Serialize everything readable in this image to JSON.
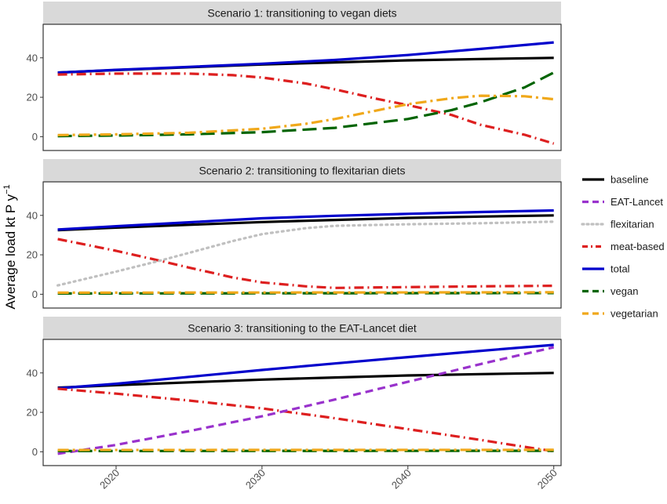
{
  "chart_data": {
    "type": "line",
    "ylabel": "Average load kt P y",
    "ylabel_superscript": "−1",
    "x_ticks": [
      2020,
      2030,
      2040,
      2050
    ],
    "xlim": [
      2015,
      2050.5
    ],
    "y_ticks": [
      0,
      20,
      40
    ],
    "legend_position": "right",
    "colors": {
      "baseline": "#000000",
      "EAT-Lancet": "#9932CC",
      "flexitarian": "#C0C0C0",
      "meat-based": "#DD1F1F",
      "total": "#0000CC",
      "vegan": "#006400",
      "vegetarian": "#F0A81A"
    },
    "legend": [
      "baseline",
      "EAT-Lancet",
      "flexitarian",
      "meat-based",
      "total",
      "vegan",
      "vegetarian"
    ],
    "panels": [
      {
        "title": "Scenario 1: transitioning to vegan diets",
        "ylim": [
          -7,
          57
        ],
        "series": [
          {
            "name": "baseline",
            "x": [
              2016,
              2020,
              2025,
              2030,
              2035,
              2040,
              2045,
              2050
            ],
            "y": [
              32.5,
              33.8,
              35.2,
              36.6,
              37.7,
              38.7,
              39.4,
              40.0
            ]
          },
          {
            "name": "total",
            "x": [
              2016,
              2020,
              2025,
              2030,
              2035,
              2040,
              2045,
              2050
            ],
            "y": [
              32.5,
              33.9,
              35.4,
              37.0,
              38.9,
              41.4,
              44.5,
              47.8
            ]
          },
          {
            "name": "meat-based",
            "x": [
              2016,
              2020,
              2025,
              2028,
              2030,
              2033,
              2035,
              2038,
              2040,
              2043,
              2045,
              2048,
              2050
            ],
            "y": [
              31.5,
              32.0,
              32.0,
              31.2,
              30.0,
              27.0,
              24.0,
              19.0,
              16.0,
              11.0,
              6.0,
              1.0,
              -3.5
            ]
          },
          {
            "name": "vegan",
            "x": [
              2016,
              2020,
              2025,
              2030,
              2035,
              2040,
              2043,
              2045,
              2048,
              2050
            ],
            "y": [
              0.3,
              0.6,
              1.2,
              2.3,
              4.5,
              9.0,
              13.5,
              17.5,
              25.0,
              32.5
            ]
          },
          {
            "name": "vegetarian",
            "x": [
              2016,
              2020,
              2025,
              2030,
              2033,
              2035,
              2038,
              2040,
              2043,
              2045,
              2048,
              2050
            ],
            "y": [
              0.8,
              1.2,
              2.0,
              4.0,
              6.5,
              9.0,
              13.5,
              16.5,
              19.5,
              20.8,
              20.5,
              19.0
            ]
          }
        ]
      },
      {
        "title": "Scenario 2: transitioning to flexitarian diets",
        "ylim": [
          -7,
          57
        ],
        "series": [
          {
            "name": "baseline",
            "x": [
              2016,
              2020,
              2025,
              2030,
              2035,
              2040,
              2045,
              2050
            ],
            "y": [
              32.5,
              33.8,
              35.2,
              36.6,
              37.7,
              38.7,
              39.4,
              40.0
            ]
          },
          {
            "name": "total",
            "x": [
              2016,
              2020,
              2025,
              2030,
              2035,
              2040,
              2045,
              2050
            ],
            "y": [
              32.8,
              34.5,
              36.5,
              38.5,
              39.8,
              40.8,
              41.7,
              42.5
            ]
          },
          {
            "name": "meat-based",
            "x": [
              2016,
              2018,
              2020,
              2023,
              2025,
              2028,
              2030,
              2033,
              2035,
              2040,
              2045,
              2050
            ],
            "y": [
              28.0,
              25.0,
              22.0,
              17.0,
              13.5,
              8.5,
              6.0,
              4.0,
              3.2,
              3.6,
              4.0,
              4.3
            ]
          },
          {
            "name": "flexitarian",
            "x": [
              2016,
              2018,
              2020,
              2023,
              2025,
              2028,
              2030,
              2033,
              2035,
              2040,
              2045,
              2050
            ],
            "y": [
              4.5,
              8.0,
              11.5,
              17.0,
              21.0,
              27.0,
              30.5,
              33.5,
              34.7,
              35.5,
              36.0,
              36.8
            ]
          },
          {
            "name": "vegan",
            "x": [
              2016,
              2050
            ],
            "y": [
              0.4,
              0.6
            ]
          },
          {
            "name": "vegetarian",
            "x": [
              2016,
              2050
            ],
            "y": [
              0.8,
              1.0
            ]
          }
        ]
      },
      {
        "title": "Scenario 3: transitioning to the EAT-Lancet diet",
        "ylim": [
          -7,
          57
        ],
        "series": [
          {
            "name": "baseline",
            "x": [
              2016,
              2020,
              2025,
              2030,
              2035,
              2040,
              2045,
              2050
            ],
            "y": [
              32.5,
              33.8,
              35.2,
              36.6,
              37.7,
              38.7,
              39.4,
              40.0
            ]
          },
          {
            "name": "total",
            "x": [
              2016,
              2020,
              2025,
              2030,
              2035,
              2040,
              2045,
              2050
            ],
            "y": [
              32.2,
              34.5,
              38.0,
              41.5,
              44.8,
              48.0,
              51.2,
              54.2
            ]
          },
          {
            "name": "meat-based",
            "x": [
              2016,
              2020,
              2025,
              2030,
              2035,
              2040,
              2045,
              2048,
              2050
            ],
            "y": [
              32.0,
              29.5,
              26.0,
              22.0,
              17.0,
              11.5,
              6.0,
              2.5,
              0.3
            ]
          },
          {
            "name": "EAT-Lancet",
            "x": [
              2016,
              2020,
              2025,
              2030,
              2035,
              2040,
              2045,
              2050
            ],
            "y": [
              -1.0,
              3.5,
              10.5,
              18.0,
              26.5,
              35.5,
              44.5,
              53.0
            ]
          },
          {
            "name": "vegan",
            "x": [
              2016,
              2050
            ],
            "y": [
              0.4,
              0.5
            ]
          },
          {
            "name": "vegetarian",
            "x": [
              2016,
              2050
            ],
            "y": [
              0.9,
              1.0
            ]
          }
        ]
      }
    ]
  }
}
